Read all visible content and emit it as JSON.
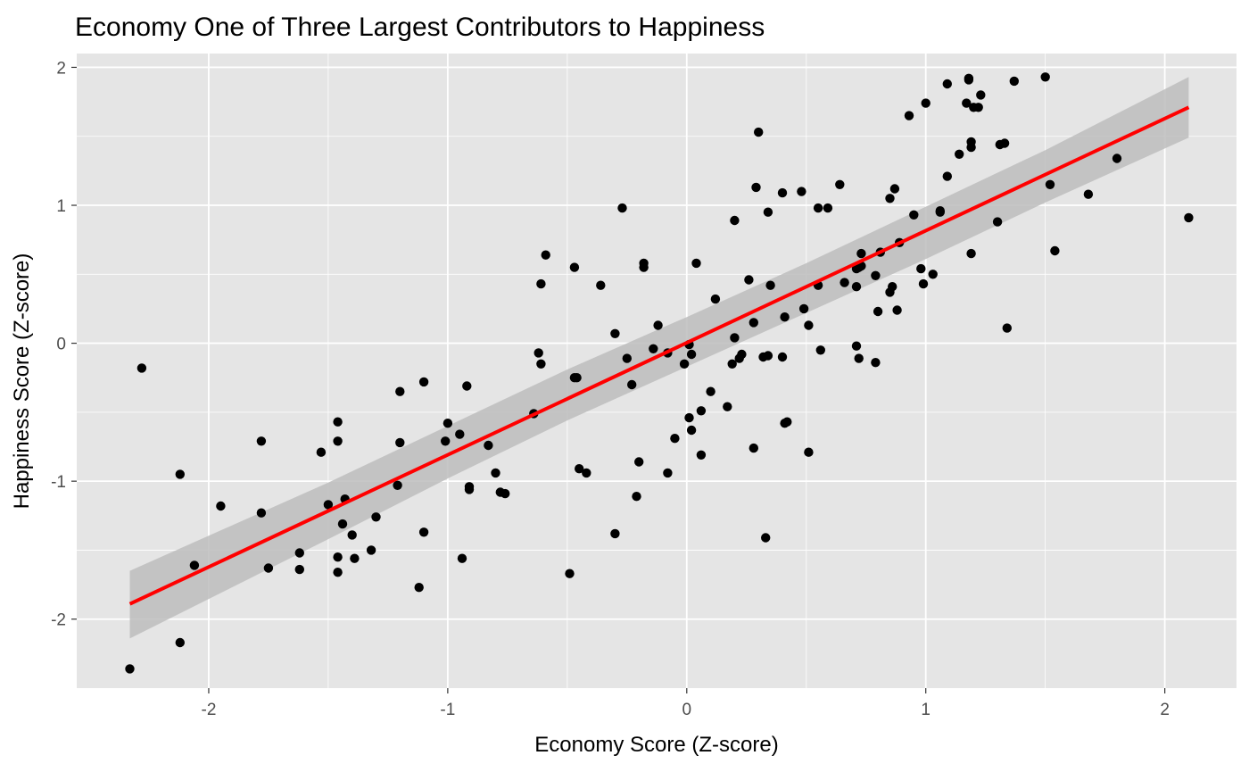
{
  "chart_data": {
    "type": "scatter",
    "title": "Economy One of Three Largest Contributors to Happiness",
    "xlabel": "Economy Score (Z-score)",
    "ylabel": "Happiness Score (Z-score)",
    "xlim": [
      -2.5,
      2.3
    ],
    "ylim": [
      -2.5,
      2.1
    ],
    "x_ticks": [
      -2,
      -1,
      0,
      1,
      2
    ],
    "y_ticks": [
      -2,
      -1,
      0,
      1,
      2
    ],
    "grid": true,
    "colors": {
      "panel_background": "#e5e5e5",
      "grid_major": "#ffffff",
      "points": "#000000",
      "fit_line": "#ff0000",
      "confidence_band": "#bdbdbd"
    },
    "points": [
      [
        -2.33,
        -2.36
      ],
      [
        -2.28,
        -0.18
      ],
      [
        -2.12,
        -0.95
      ],
      [
        -2.12,
        -2.17
      ],
      [
        -2.06,
        -1.61
      ],
      [
        -1.95,
        -1.18
      ],
      [
        -1.78,
        -0.71
      ],
      [
        -1.78,
        -1.23
      ],
      [
        -1.75,
        -1.63
      ],
      [
        -1.62,
        -1.52
      ],
      [
        -1.62,
        -1.64
      ],
      [
        -1.53,
        -0.79
      ],
      [
        -1.5,
        -1.17
      ],
      [
        -1.46,
        -0.57
      ],
      [
        -1.46,
        -0.71
      ],
      [
        -1.46,
        -1.55
      ],
      [
        -1.46,
        -1.66
      ],
      [
        -1.44,
        -1.31
      ],
      [
        -1.43,
        -1.13
      ],
      [
        -1.4,
        -1.39
      ],
      [
        -1.39,
        -1.56
      ],
      [
        -1.32,
        -1.5
      ],
      [
        -1.3,
        -1.26
      ],
      [
        -1.21,
        -1.03
      ],
      [
        -1.2,
        -0.35
      ],
      [
        -1.2,
        -0.72
      ],
      [
        -1.1,
        -0.28
      ],
      [
        -1.1,
        -1.37
      ],
      [
        -1.12,
        -1.77
      ],
      [
        -1.01,
        -0.71
      ],
      [
        -1.0,
        -0.58
      ],
      [
        -0.95,
        -0.66
      ],
      [
        -0.94,
        -1.56
      ],
      [
        -0.92,
        -0.31
      ],
      [
        -0.91,
        -1.04
      ],
      [
        -0.91,
        -1.06
      ],
      [
        -0.83,
        -0.74
      ],
      [
        -0.8,
        -0.94
      ],
      [
        -0.78,
        -1.08
      ],
      [
        -0.76,
        -1.09
      ],
      [
        -0.64,
        -0.51
      ],
      [
        -0.62,
        -0.07
      ],
      [
        -0.61,
        -0.15
      ],
      [
        -0.61,
        0.43
      ],
      [
        -0.59,
        0.64
      ],
      [
        -0.49,
        -1.67
      ],
      [
        -0.47,
        0.55
      ],
      [
        -0.47,
        -0.25
      ],
      [
        -0.46,
        -0.25
      ],
      [
        -0.45,
        -0.91
      ],
      [
        -0.42,
        -0.94
      ],
      [
        -0.36,
        0.42
      ],
      [
        -0.3,
        0.07
      ],
      [
        -0.3,
        -1.38
      ],
      [
        -0.27,
        0.98
      ],
      [
        -0.25,
        -0.11
      ],
      [
        -0.23,
        -0.3
      ],
      [
        -0.21,
        -1.11
      ],
      [
        -0.2,
        -0.86
      ],
      [
        -0.18,
        0.55
      ],
      [
        -0.18,
        0.58
      ],
      [
        -0.14,
        -0.04
      ],
      [
        -0.12,
        0.13
      ],
      [
        -0.08,
        -0.07
      ],
      [
        -0.08,
        -0.94
      ],
      [
        -0.05,
        -0.69
      ],
      [
        -0.01,
        -0.15
      ],
      [
        0.01,
        -0.01
      ],
      [
        0.01,
        -0.54
      ],
      [
        0.02,
        -0.08
      ],
      [
        0.02,
        -0.63
      ],
      [
        0.04,
        0.58
      ],
      [
        0.06,
        -0.49
      ],
      [
        0.06,
        -0.81
      ],
      [
        0.1,
        -0.35
      ],
      [
        0.12,
        0.32
      ],
      [
        0.17,
        -0.46
      ],
      [
        0.19,
        -0.15
      ],
      [
        0.2,
        0.04
      ],
      [
        0.2,
        0.89
      ],
      [
        0.22,
        -0.11
      ],
      [
        0.23,
        -0.08
      ],
      [
        0.26,
        0.46
      ],
      [
        0.28,
        0.15
      ],
      [
        0.28,
        -0.76
      ],
      [
        0.29,
        1.13
      ],
      [
        0.3,
        1.53
      ],
      [
        0.32,
        -0.1
      ],
      [
        0.33,
        -1.41
      ],
      [
        0.34,
        -0.09
      ],
      [
        0.34,
        0.95
      ],
      [
        0.35,
        0.42
      ],
      [
        0.4,
        -0.1
      ],
      [
        0.4,
        1.09
      ],
      [
        0.41,
        0.19
      ],
      [
        0.41,
        -0.58
      ],
      [
        0.42,
        -0.57
      ],
      [
        0.48,
        1.1
      ],
      [
        0.49,
        0.25
      ],
      [
        0.51,
        0.13
      ],
      [
        0.51,
        -0.79
      ],
      [
        0.55,
        0.42
      ],
      [
        0.55,
        0.98
      ],
      [
        0.56,
        -0.05
      ],
      [
        0.59,
        0.98
      ],
      [
        0.64,
        1.15
      ],
      [
        0.66,
        0.44
      ],
      [
        0.71,
        0.41
      ],
      [
        0.71,
        0.54
      ],
      [
        0.71,
        -0.02
      ],
      [
        0.72,
        0.55
      ],
      [
        0.72,
        -0.11
      ],
      [
        0.73,
        0.65
      ],
      [
        0.73,
        0.56
      ],
      [
        0.79,
        0.49
      ],
      [
        0.79,
        -0.14
      ],
      [
        0.8,
        0.23
      ],
      [
        0.81,
        0.66
      ],
      [
        0.85,
        0.37
      ],
      [
        0.85,
        1.05
      ],
      [
        0.86,
        0.41
      ],
      [
        0.87,
        1.12
      ],
      [
        0.88,
        0.24
      ],
      [
        0.89,
        0.73
      ],
      [
        0.93,
        1.65
      ],
      [
        0.95,
        0.93
      ],
      [
        0.98,
        0.54
      ],
      [
        0.99,
        0.43
      ],
      [
        1.0,
        1.74
      ],
      [
        1.03,
        0.5
      ],
      [
        1.06,
        0.96
      ],
      [
        1.06,
        0.95
      ],
      [
        1.09,
        1.21
      ],
      [
        1.09,
        1.88
      ],
      [
        1.14,
        1.37
      ],
      [
        1.17,
        1.74
      ],
      [
        1.18,
        1.91
      ],
      [
        1.18,
        1.92
      ],
      [
        1.19,
        1.42
      ],
      [
        1.19,
        1.46
      ],
      [
        1.19,
        0.65
      ],
      [
        1.2,
        1.71
      ],
      [
        1.23,
        1.8
      ],
      [
        1.22,
        1.71
      ],
      [
        1.3,
        0.88
      ],
      [
        1.31,
        1.44
      ],
      [
        1.33,
        1.45
      ],
      [
        1.34,
        0.11
      ],
      [
        1.37,
        1.9
      ],
      [
        1.5,
        1.93
      ],
      [
        1.52,
        1.15
      ],
      [
        1.54,
        0.67
      ],
      [
        1.68,
        1.08
      ],
      [
        1.8,
        1.34
      ],
      [
        2.1,
        0.91
      ]
    ],
    "fit_line": {
      "x": [
        -2.33,
        2.1
      ],
      "y": [
        -1.89,
        1.71
      ]
    },
    "confidence_band": {
      "x": [
        -2.33,
        -1.5,
        -1.0,
        -0.5,
        0.0,
        0.5,
        1.0,
        1.5,
        2.1
      ],
      "upper": [
        -1.65,
        -1.01,
        -0.6,
        -0.19,
        0.19,
        0.58,
        0.99,
        1.4,
        1.93
      ],
      "lower": [
        -2.14,
        -1.42,
        -0.98,
        -0.56,
        -0.17,
        0.22,
        0.61,
        1.02,
        1.49
      ]
    }
  }
}
